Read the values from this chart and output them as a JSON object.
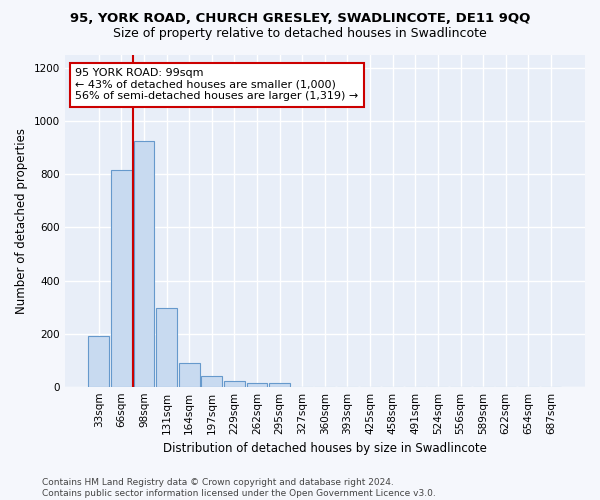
{
  "title_line1": "95, YORK ROAD, CHURCH GRESLEY, SWADLINCOTE, DE11 9QQ",
  "title_line2": "Size of property relative to detached houses in Swadlincote",
  "xlabel": "Distribution of detached houses by size in Swadlincote",
  "ylabel": "Number of detached properties",
  "categories": [
    "33sqm",
    "66sqm",
    "98sqm",
    "131sqm",
    "164sqm",
    "197sqm",
    "229sqm",
    "262sqm",
    "295sqm",
    "327sqm",
    "360sqm",
    "393sqm",
    "425sqm",
    "458sqm",
    "491sqm",
    "524sqm",
    "556sqm",
    "589sqm",
    "622sqm",
    "654sqm",
    "687sqm"
  ],
  "values": [
    190,
    815,
    925,
    295,
    90,
    40,
    22,
    15,
    12,
    0,
    0,
    0,
    0,
    0,
    0,
    0,
    0,
    0,
    0,
    0,
    0
  ],
  "bar_color": "#c8daf0",
  "bar_edge_color": "#6699cc",
  "vline_color": "#cc0000",
  "annotation_text": "95 YORK ROAD: 99sqm\n← 43% of detached houses are smaller (1,000)\n56% of semi-detached houses are larger (1,319) →",
  "annotation_box_color": "#ffffff",
  "annotation_box_edge_color": "#cc0000",
  "ylim": [
    0,
    1250
  ],
  "yticks": [
    0,
    200,
    400,
    600,
    800,
    1000,
    1200
  ],
  "footnote": "Contains HM Land Registry data © Crown copyright and database right 2024.\nContains public sector information licensed under the Open Government Licence v3.0.",
  "plot_bg_color": "#e8eef8",
  "fig_bg_color": "#f5f7fc",
  "grid_color": "#ffffff",
  "title_fontsize": 9.5,
  "subtitle_fontsize": 9,
  "axis_label_fontsize": 8.5,
  "tick_fontsize": 7.5,
  "annotation_fontsize": 8,
  "footnote_fontsize": 6.5
}
